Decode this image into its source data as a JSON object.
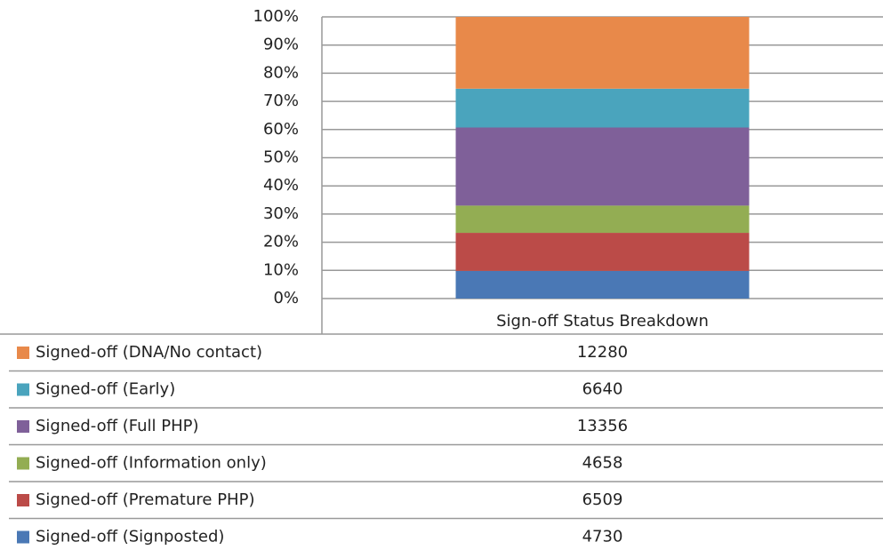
{
  "chart_data": {
    "type": "bar",
    "stacking": "percent",
    "categories": [
      "Sign-off Status Breakdown"
    ],
    "series": [
      {
        "name": "Signed-off (DNA/No contact)",
        "color": "#e8894a",
        "values": [
          12280
        ]
      },
      {
        "name": "Signed-off (Early)",
        "color": "#4aa4bd",
        "values": [
          6640
        ]
      },
      {
        "name": "Signed-off (Full PHP)",
        "color": "#7f6099",
        "values": [
          13356
        ]
      },
      {
        "name": "Signed-off (Information only)",
        "color": "#93ad53",
        "values": [
          4658
        ]
      },
      {
        "name": "Signed-off (Premature PHP)",
        "color": "#bb4b48",
        "values": [
          6509
        ]
      },
      {
        "name": "Signed-off (Signposted)",
        "color": "#4a78b5",
        "values": [
          4730
        ]
      }
    ],
    "ylim": [
      0,
      100
    ],
    "yticks": [
      {
        "value": 0,
        "label": "0%"
      },
      {
        "value": 10,
        "label": "10%"
      },
      {
        "value": 20,
        "label": "20%"
      },
      {
        "value": 30,
        "label": "30%"
      },
      {
        "value": 40,
        "label": "40%"
      },
      {
        "value": 50,
        "label": "50%"
      },
      {
        "value": 60,
        "label": "60%"
      },
      {
        "value": 70,
        "label": "70%"
      },
      {
        "value": 80,
        "label": "80%"
      },
      {
        "value": 90,
        "label": "90%"
      },
      {
        "value": 100,
        "label": "100%"
      }
    ],
    "grid": true,
    "data_table": true
  }
}
